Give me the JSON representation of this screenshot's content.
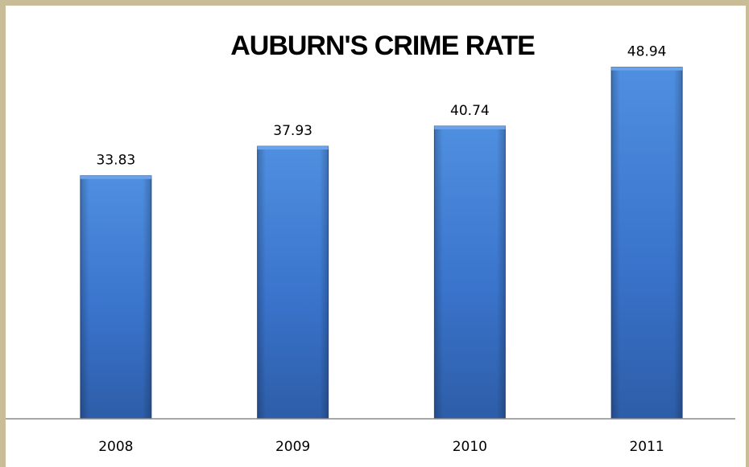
{
  "chart_data": {
    "type": "bar",
    "title": "AUBURN'S CRIME RATE",
    "categories": [
      "2008",
      "2009",
      "2010",
      "2011"
    ],
    "values": [
      33.83,
      37.93,
      40.74,
      48.94
    ],
    "data_labels": [
      "33.83",
      "37.93",
      "40.74",
      "48.94"
    ],
    "ylim": [
      0,
      58.3
    ],
    "xlabel": "",
    "ylabel": "",
    "grid": false,
    "legend": "none",
    "colors": {
      "bar_top": "#4f8fe0",
      "bar_mid": "#3a74cc",
      "bar_bottom": "#2d5da8",
      "bar_edge": "#2a5496",
      "axis": "#8c8c8c",
      "frame": "#c9bd97"
    }
  }
}
